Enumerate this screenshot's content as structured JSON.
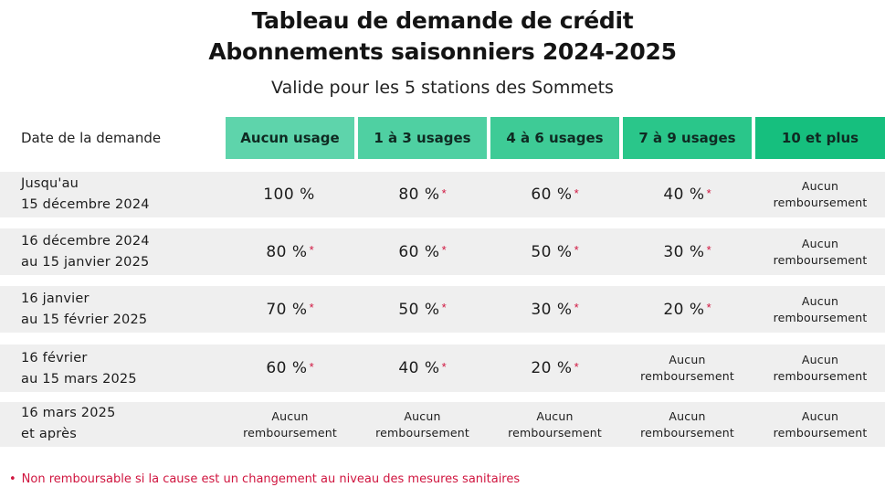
{
  "title": {
    "line1": "Tableau de demande de crédit",
    "line2": "Abonnements saisonniers 2024-2025",
    "subtitle": "Valide pour les 5 stations des Sommets"
  },
  "colors": {
    "accent_light": "#5ed4ab",
    "accent_mid": "#3ecb96",
    "accent_dark": "#16bf7e",
    "row_bg": "#efefef",
    "asterisk": "#d0153f"
  },
  "table": {
    "date_header": "Date de la demande",
    "columns": [
      "Aucun usage",
      "1 à 3 usages",
      "4 à 6 usages",
      "7 à 9 usages",
      "10 et plus"
    ],
    "rows": [
      {
        "date_line1": "Jusqu'au",
        "date_line2": "15 décembre 2024",
        "cells": [
          {
            "value": "100 %",
            "star": ""
          },
          {
            "value": "80 %",
            "star": "*"
          },
          {
            "value": "60 %",
            "star": "*"
          },
          {
            "value": "40 %",
            "star": "*"
          },
          {
            "none1": "Aucun",
            "none2": "remboursement"
          }
        ]
      },
      {
        "date_line1": "16 décembre 2024",
        "date_line2": "au 15 janvier 2025",
        "cells": [
          {
            "value": "80 %",
            "star": "*"
          },
          {
            "value": "60 %",
            "star": "*"
          },
          {
            "value": "50 %",
            "star": "*"
          },
          {
            "value": "30 %",
            "star": "*"
          },
          {
            "none1": "Aucun",
            "none2": "remboursement"
          }
        ]
      },
      {
        "date_line1": "16 janvier",
        "date_line2": "au 15 février 2025",
        "cells": [
          {
            "value": "70 %",
            "star": "*"
          },
          {
            "value": "50 %",
            "star": "*"
          },
          {
            "value": "30 %",
            "star": "*"
          },
          {
            "value": "20 %",
            "star": "*"
          },
          {
            "none1": "Aucun",
            "none2": "remboursement"
          }
        ]
      },
      {
        "date_line1": "16 février",
        "date_line2": "au 15 mars 2025",
        "cells": [
          {
            "value": "60 %",
            "star": "*"
          },
          {
            "value": "40 %",
            "star": "*"
          },
          {
            "value": "20 %",
            "star": "*"
          },
          {
            "none1": "Aucun",
            "none2": "remboursement"
          },
          {
            "none1": "Aucun",
            "none2": "remboursement"
          }
        ]
      },
      {
        "date_line1": "16 mars 2025",
        "date_line2": "et après",
        "cells": [
          {
            "none1": "Aucun",
            "none2": "remboursement"
          },
          {
            "none1": "Aucun",
            "none2": "remboursement"
          },
          {
            "none1": "Aucun",
            "none2": "remboursement"
          },
          {
            "none1": "Aucun",
            "none2": "remboursement"
          },
          {
            "none1": "Aucun",
            "none2": "remboursement"
          }
        ]
      }
    ]
  },
  "footnote": {
    "bullet": "•",
    "text": "Non remboursable si la cause est un  changement au niveau des mesures sanitaires"
  }
}
